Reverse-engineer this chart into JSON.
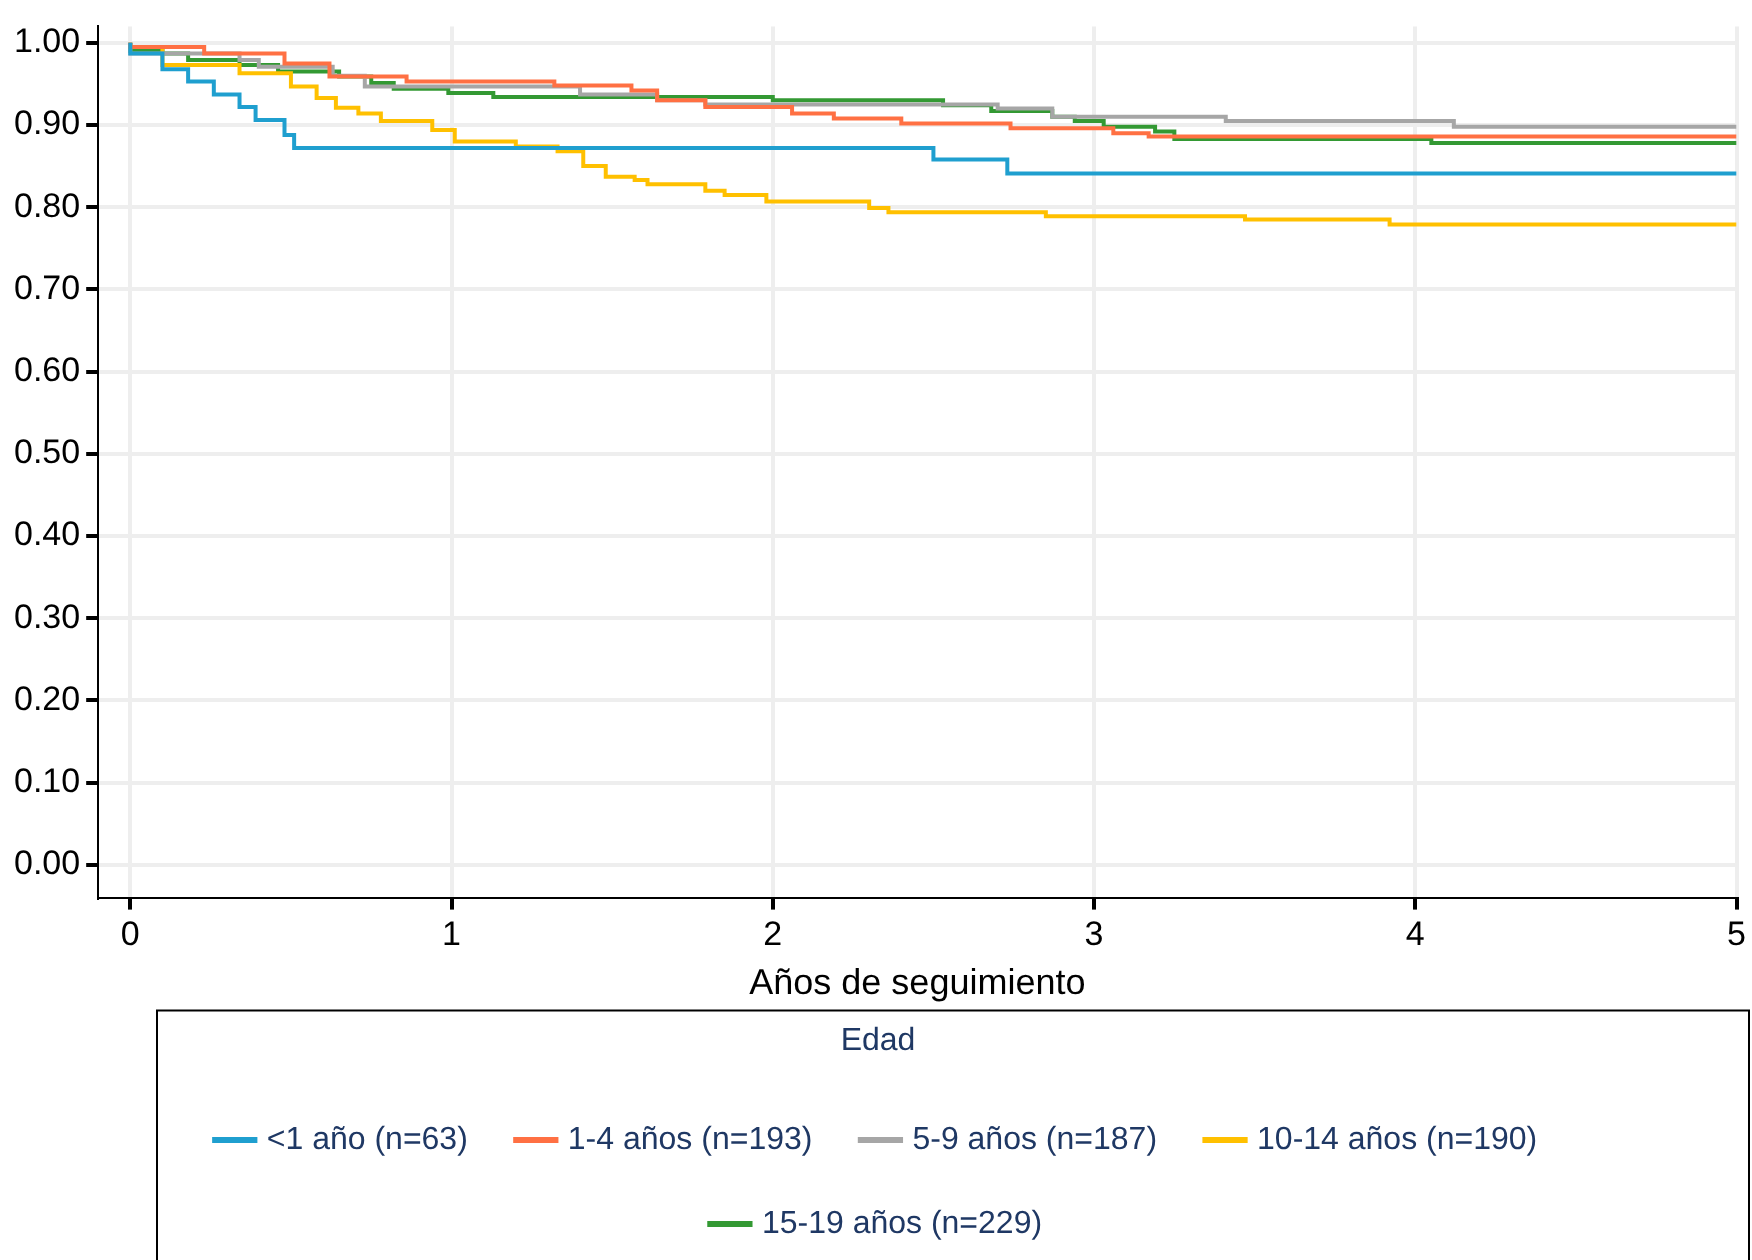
{
  "chart_data": {
    "type": "step",
    "xlabel": "Años de seguimiento",
    "legend_title": "Edad",
    "legend": "bottom",
    "grid": true,
    "xlim": [
      -0.1,
      5
    ],
    "xticks": [
      0,
      1,
      2,
      3,
      4,
      5
    ],
    "ylim": [
      -0.04,
      1.02
    ],
    "yticks": [
      {
        "value": 0,
        "label": "0.00"
      },
      {
        "value": 0.1,
        "label": "0.10"
      },
      {
        "value": 0.2,
        "label": "0.20"
      },
      {
        "value": 0.3,
        "label": "0.30"
      },
      {
        "value": 0.4,
        "label": "0.40"
      },
      {
        "value": 0.5,
        "label": "0.50"
      },
      {
        "value": 0.6,
        "label": "0.60"
      },
      {
        "value": 0.7,
        "label": "0.70"
      },
      {
        "value": 0.8,
        "label": "0.80"
      },
      {
        "value": 0.9,
        "label": "0.90"
      },
      {
        "value": 1,
        "label": "1.00"
      }
    ],
    "series": [
      {
        "name": "<1 año (n=63)",
        "color": "#1f9fcf",
        "x": [
          0,
          0.1,
          0.18,
          0.26,
          0.34,
          0.39,
          0.48,
          0.51,
          2.5,
          2.73,
          3.27,
          5
        ],
        "values": [
          1,
          0.987,
          0.968,
          0.953,
          0.937,
          0.922,
          0.906,
          0.888,
          0.872,
          0.858,
          0.841,
          0.841
        ]
      },
      {
        "name": "1-4 años (n=193)",
        "color": "#ff7043",
        "x": [
          0,
          0.23,
          0.48,
          0.62,
          0.86,
          1.32,
          1.56,
          1.64,
          1.79,
          2.06,
          2.19,
          2.4,
          2.74,
          3.06,
          3.17,
          4.65,
          5
        ],
        "values": [
          1,
          0.995,
          0.987,
          0.975,
          0.959,
          0.953,
          0.948,
          0.942,
          0.93,
          0.922,
          0.914,
          0.908,
          0.902,
          0.896,
          0.89,
          0.886,
          0.886
        ]
      },
      {
        "name": "5-9 años (n=187)",
        "color": "#a6a6a6",
        "x": [
          0,
          0.34,
          0.4,
          0.63,
          0.73,
          1.4,
          1.64,
          1.79,
          2.7,
          2.87,
          3.41,
          4.12,
          4.54,
          5
        ],
        "values": [
          1,
          0.987,
          0.979,
          0.971,
          0.96,
          0.947,
          0.937,
          0.93,
          0.925,
          0.92,
          0.91,
          0.905,
          0.898,
          0.898
        ]
      },
      {
        "name": "10-14 años (n=190)",
        "color": "#ffc000",
        "x": [
          0,
          0.1,
          0.34,
          0.5,
          0.58,
          0.64,
          0.71,
          0.78,
          0.94,
          1.01,
          1.2,
          1.33,
          1.41,
          1.48,
          1.57,
          1.61,
          1.79,
          1.85,
          1.98,
          2.3,
          2.36,
          2.85,
          3.47,
          3.92,
          3.97,
          5
        ],
        "values": [
          1,
          0.995,
          0.973,
          0.963,
          0.947,
          0.933,
          0.921,
          0.914,
          0.905,
          0.894,
          0.88,
          0.874,
          0.868,
          0.85,
          0.837,
          0.833,
          0.828,
          0.82,
          0.815,
          0.807,
          0.799,
          0.794,
          0.789,
          0.785,
          0.779,
          0.779
        ]
      },
      {
        "name": "15-19 años (n=229)",
        "color": "#339933",
        "x": [
          0,
          0.1,
          0.18,
          0.34,
          0.46,
          0.65,
          0.75,
          0.82,
          0.99,
          1.13,
          2,
          2.53,
          2.68,
          2.87,
          2.94,
          3.03,
          3.19,
          3.25,
          4.05,
          4.34,
          5
        ],
        "values": [
          1,
          0.99,
          0.987,
          0.979,
          0.973,
          0.965,
          0.959,
          0.951,
          0.944,
          0.939,
          0.934,
          0.93,
          0.924,
          0.917,
          0.91,
          0.905,
          0.898,
          0.892,
          0.883,
          0.878,
          0.878
        ]
      }
    ]
  }
}
